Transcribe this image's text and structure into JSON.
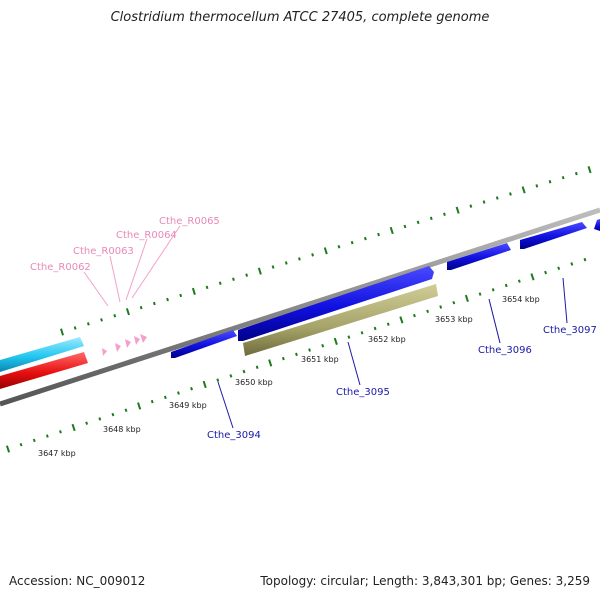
{
  "title": "Clostridium thermocellum ATCC 27405, complete genome",
  "footer": {
    "accession": "Accession: NC_009012",
    "topology": "Topology: circular; Length: 3,843,301 bp; Genes: 3,259"
  },
  "colors": {
    "backbone": "#8a8a8a",
    "tick_major": "#1f7a1f",
    "cds_forward": "#1010e0",
    "cds_highlight": "#a7a46a",
    "left_cyan": "#22c8f0",
    "left_red": "#e81010",
    "rna": "#f4a0cc",
    "gene_label": "#1a1aa6",
    "rna_label": "#e888b8"
  },
  "scale_labels": [
    "3647 kbp",
    "3648 kbp",
    "3649 kbp",
    "3650 kbp",
    "3651 kbp",
    "3652 kbp",
    "3653 kbp",
    "3654 kbp"
  ],
  "gene_labels": [
    "Cthe_3094",
    "Cthe_3095",
    "Cthe_3096",
    "Cthe_3097"
  ],
  "rna_labels": [
    "Cthe_R0062",
    "Cthe_R0063",
    "Cthe_R0064",
    "Cthe_R0065"
  ]
}
